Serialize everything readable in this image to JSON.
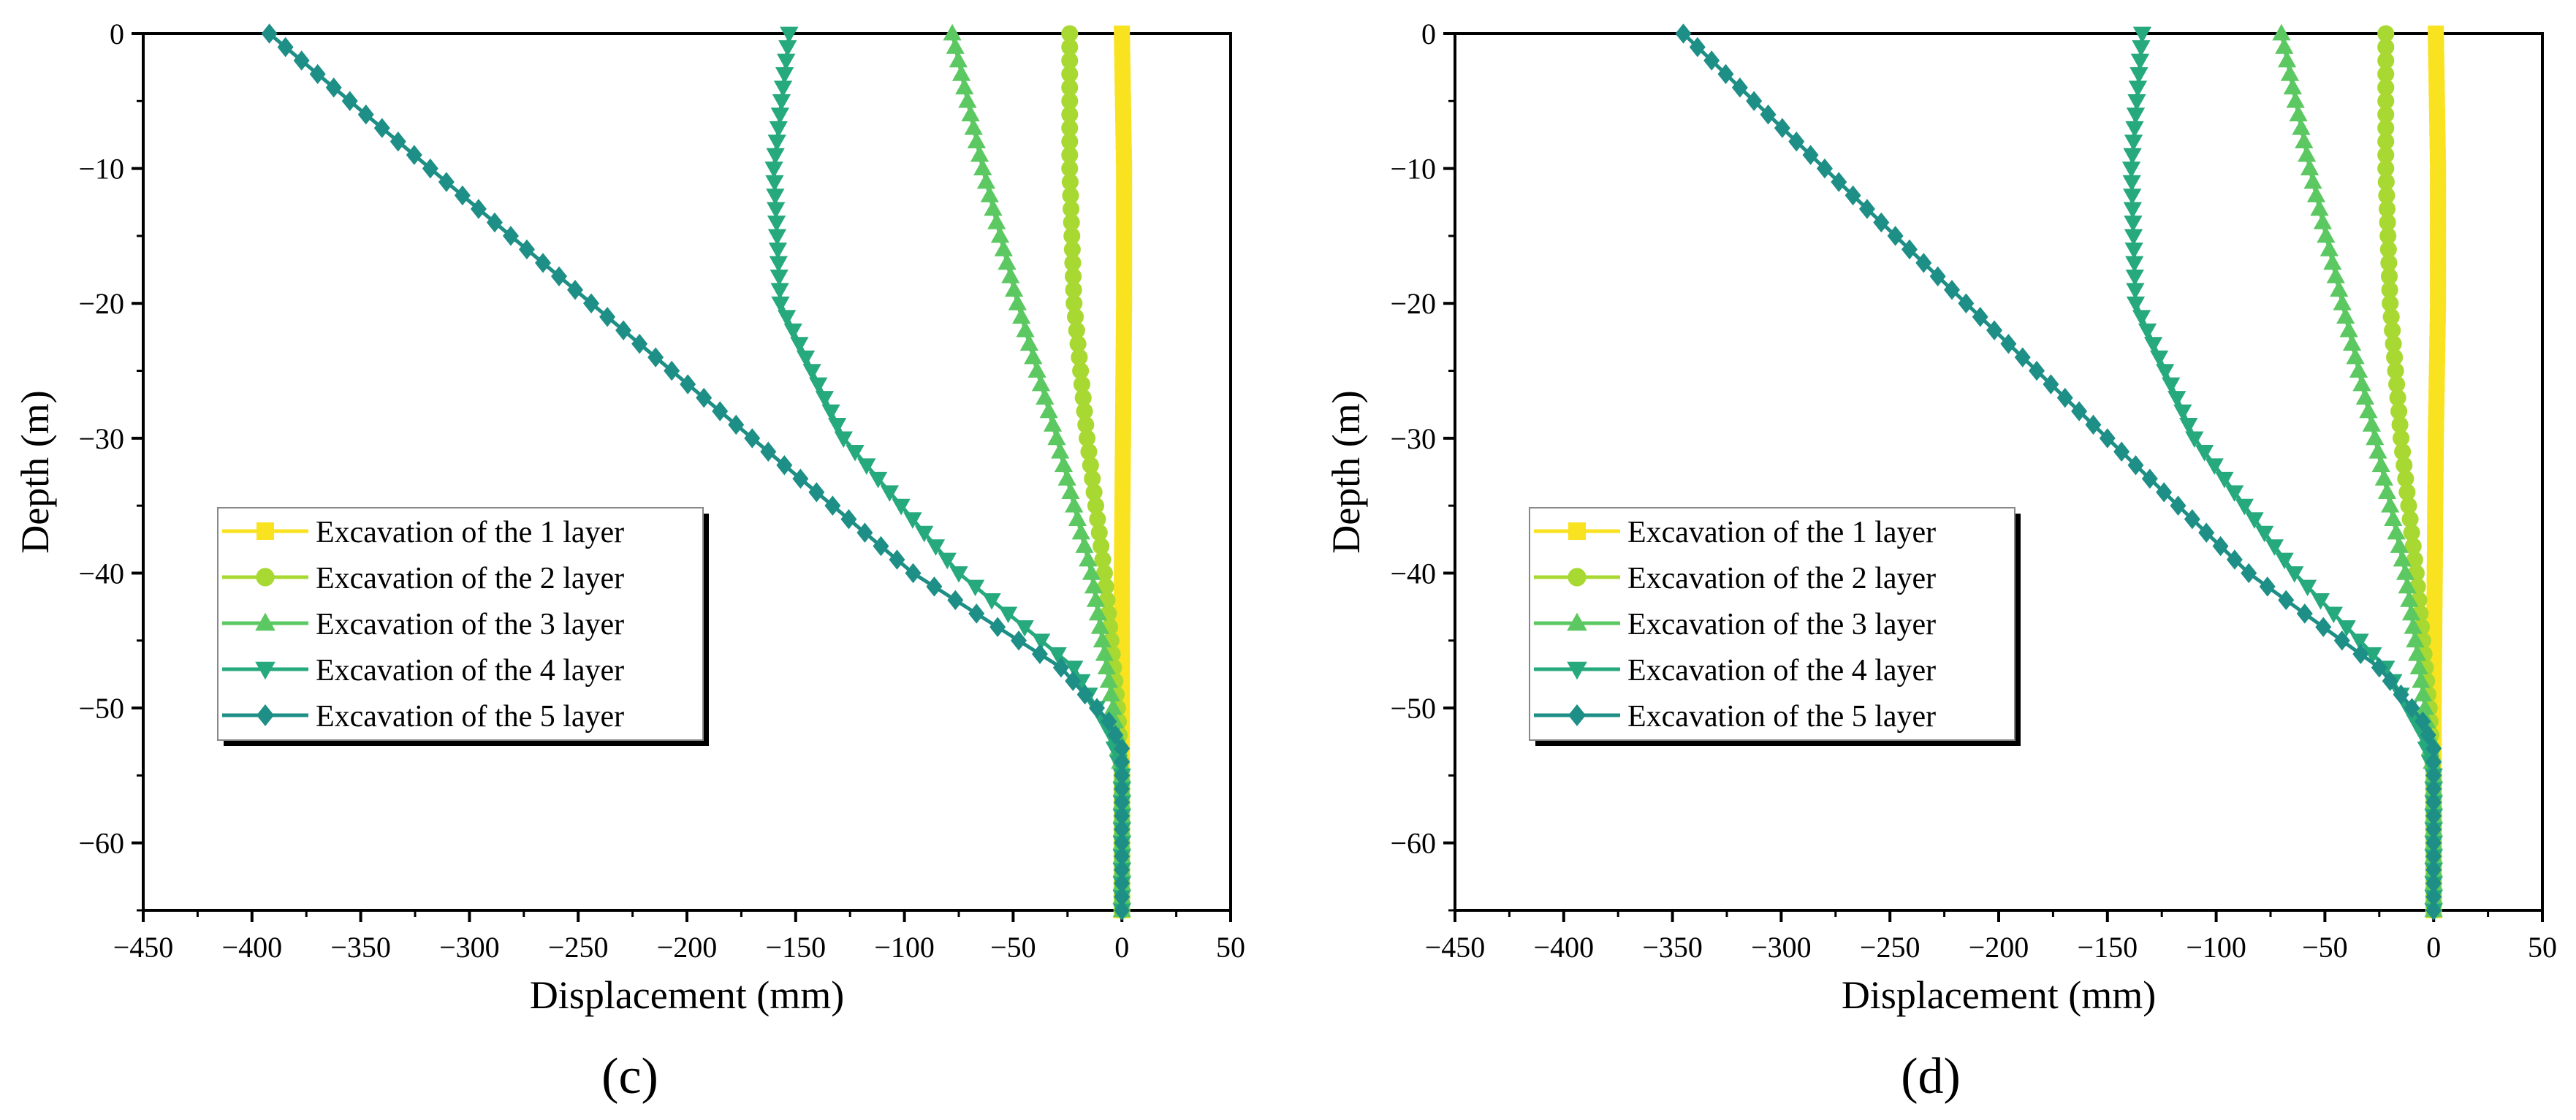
{
  "chart_data": [
    {
      "type": "line",
      "panel_label": "(c)",
      "xlabel": "Displacement (mm)",
      "ylabel": "Depth (m)",
      "xlim": [
        -450,
        50
      ],
      "ylim": [
        -65,
        0
      ],
      "xticks": [
        -450,
        -400,
        -350,
        -300,
        -250,
        -200,
        -150,
        -100,
        -50,
        0,
        50
      ],
      "yticks": [
        0,
        -10,
        -20,
        -30,
        -40,
        -50,
        -60
      ],
      "xtick_labels": [
        "−450",
        "−400",
        "−350",
        "−300",
        "−250",
        "−200",
        "−150",
        "−100",
        "−50",
        "0",
        "50"
      ],
      "ytick_labels": [
        "0",
        "−10",
        "−20",
        "−30",
        "−40",
        "−50",
        "−60"
      ],
      "legend_position": "center-left",
      "series": [
        {
          "name": "Excavation of the 1 layer",
          "marker": "square",
          "color": "#F9E21F",
          "points": [
            [
              0,
              0
            ],
            [
              1,
              -10
            ],
            [
              1,
              -20
            ],
            [
              0.5,
              -30
            ],
            [
              0,
              -40
            ],
            [
              0,
              -50
            ],
            [
              0,
              -55
            ],
            [
              0,
              -65
            ]
          ]
        },
        {
          "name": "Excavation of the 2 layer",
          "marker": "circle",
          "color": "#A8D932",
          "points": [
            [
              -24,
              0
            ],
            [
              -24,
              -10
            ],
            [
              -22,
              -20
            ],
            [
              -16,
              -30
            ],
            [
              -8,
              -40
            ],
            [
              -2,
              -50
            ],
            [
              0,
              -55
            ],
            [
              0,
              -65
            ]
          ]
        },
        {
          "name": "Excavation of the 3 layer",
          "marker": "triangle-up",
          "color": "#5CC862",
          "points": [
            [
              -78,
              0
            ],
            [
              -64,
              -10
            ],
            [
              -48,
              -20
            ],
            [
              -30,
              -30
            ],
            [
              -14,
              -40
            ],
            [
              -4,
              -50
            ],
            [
              0,
              -55
            ],
            [
              0,
              -65
            ]
          ]
        },
        {
          "name": "Excavation of the 4 layer",
          "marker": "triangle-down",
          "color": "#26A97D",
          "points": [
            [
              -153,
              0
            ],
            [
              -160,
              -10
            ],
            [
              -157,
              -20
            ],
            [
              -128,
              -30
            ],
            [
              -75,
              -40
            ],
            [
              -22,
              -47
            ],
            [
              -5,
              -52
            ],
            [
              0,
              -55
            ],
            [
              0,
              -65
            ]
          ]
        },
        {
          "name": "Excavation of the 5 layer",
          "marker": "diamond",
          "color": "#1E8F86",
          "points": [
            [
              -392,
              0
            ],
            [
              -318,
              -10
            ],
            [
              -244,
              -20
            ],
            [
              -170,
              -30
            ],
            [
              -96,
              -40
            ],
            [
              -28,
              -47
            ],
            [
              -6,
              -51
            ],
            [
              0,
              -53
            ],
            [
              0,
              -65
            ]
          ]
        }
      ]
    },
    {
      "type": "line",
      "panel_label": "(d)",
      "xlabel": "Displacement (mm)",
      "ylabel": "Depth (m)",
      "xlim": [
        -450,
        50
      ],
      "ylim": [
        -65,
        0
      ],
      "xticks": [
        -450,
        -400,
        -350,
        -300,
        -250,
        -200,
        -150,
        -100,
        -50,
        0,
        50
      ],
      "yticks": [
        0,
        -10,
        -20,
        -30,
        -40,
        -50,
        -60
      ],
      "xtick_labels": [
        "−450",
        "−400",
        "−350",
        "−300",
        "−250",
        "−200",
        "−150",
        "−100",
        "−50",
        "0",
        "50"
      ],
      "ytick_labels": [
        "0",
        "−10",
        "−20",
        "−30",
        "−40",
        "−50",
        "−60"
      ],
      "legend_position": "center-left",
      "series": [
        {
          "name": "Excavation of the 1 layer",
          "marker": "square",
          "color": "#F9E21F",
          "points": [
            [
              1,
              0
            ],
            [
              2,
              -10
            ],
            [
              2,
              -20
            ],
            [
              1,
              -30
            ],
            [
              0.5,
              -40
            ],
            [
              0,
              -50
            ],
            [
              0,
              -55
            ],
            [
              0,
              -65
            ]
          ]
        },
        {
          "name": "Excavation of the 2 layer",
          "marker": "circle",
          "color": "#A8D932",
          "points": [
            [
              -22,
              0
            ],
            [
              -22,
              -10
            ],
            [
              -20,
              -20
            ],
            [
              -15,
              -30
            ],
            [
              -8,
              -40
            ],
            [
              -2,
              -50
            ],
            [
              0,
              -55
            ],
            [
              0,
              -65
            ]
          ]
        },
        {
          "name": "Excavation of the 3 layer",
          "marker": "triangle-up",
          "color": "#5CC862",
          "points": [
            [
              -70,
              0
            ],
            [
              -57,
              -10
            ],
            [
              -42,
              -20
            ],
            [
              -27,
              -30
            ],
            [
              -13,
              -40
            ],
            [
              -4,
              -50
            ],
            [
              0,
              -55
            ],
            [
              0,
              -65
            ]
          ]
        },
        {
          "name": "Excavation of the 4 layer",
          "marker": "triangle-down",
          "color": "#26A97D",
          "points": [
            [
              -134,
              0
            ],
            [
              -139,
              -10
            ],
            [
              -137,
              -20
            ],
            [
              -110,
              -30
            ],
            [
              -64,
              -40
            ],
            [
              -22,
              -47
            ],
            [
              -5,
              -52
            ],
            [
              0,
              -55
            ],
            [
              0,
              -65
            ]
          ]
        },
        {
          "name": "Excavation of the 5 layer",
          "marker": "diamond",
          "color": "#1E8F86",
          "points": [
            [
              -345,
              0
            ],
            [
              -280,
              -10
            ],
            [
              -215,
              -20
            ],
            [
              -150,
              -30
            ],
            [
              -85,
              -40
            ],
            [
              -25,
              -47
            ],
            [
              -5,
              -51
            ],
            [
              0,
              -53
            ],
            [
              0,
              -65
            ]
          ]
        }
      ]
    }
  ]
}
